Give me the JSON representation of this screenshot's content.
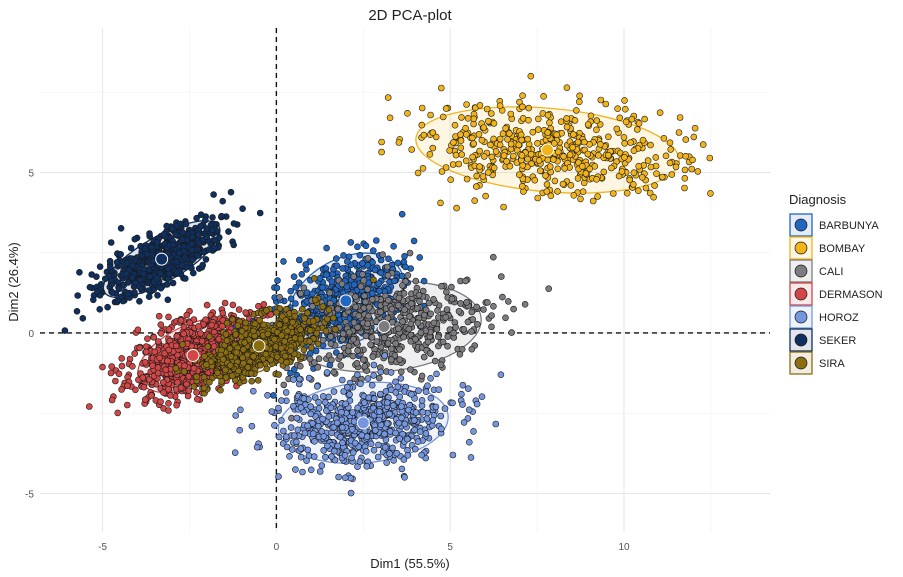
{
  "chart_data": {
    "type": "scatter",
    "title": "2D PCA-plot",
    "xlabel": "Dim1 (55.5%)",
    "ylabel": "Dim2 (26.4%)",
    "xlim": [
      -6.8,
      14.2
    ],
    "ylim": [
      -6.2,
      9.5
    ],
    "x_ticks": [
      -5,
      0,
      5,
      10
    ],
    "x_tick_labels": [
      "-5",
      "0",
      "5",
      "10"
    ],
    "y_ticks": [
      -5,
      0,
      5
    ],
    "y_tick_labels": [
      "-5",
      "0",
      "5"
    ],
    "grid": true,
    "reference_lines": {
      "x": 0,
      "y": 0,
      "style": "dashed"
    },
    "legend_title": "Diagnosis",
    "legend_position": "right",
    "series": [
      {
        "name": "BARBUNYA",
        "color": "#2166c1",
        "border": "#0d3f85",
        "centroid": [
          2.0,
          1.0
        ],
        "ellipse": {
          "rx": 3.6,
          "ry": 2.6,
          "angle": -30
        }
      },
      {
        "name": "BOMBAY",
        "color": "#f2b41b",
        "border": "#c98d00",
        "centroid": [
          7.8,
          5.7
        ],
        "ellipse": {
          "rx": 7.6,
          "ry": 2.6,
          "angle": 5
        }
      },
      {
        "name": "CALI",
        "color": "#7c7c80",
        "border": "#4e4e52",
        "centroid": [
          3.1,
          0.2
        ],
        "ellipse": {
          "rx": 5.6,
          "ry": 2.8,
          "angle": -5
        }
      },
      {
        "name": "DERMASON",
        "color": "#d14646",
        "border": "#9e2a2a",
        "centroid": [
          -2.4,
          -0.7
        ],
        "ellipse": {
          "rx": 3.4,
          "ry": 1.9,
          "angle": -25
        }
      },
      {
        "name": "HOROZ",
        "color": "#7597e0",
        "border": "#4567b3",
        "centroid": [
          2.5,
          -2.8
        ],
        "ellipse": {
          "rx": 4.9,
          "ry": 2.5,
          "angle": -5
        }
      },
      {
        "name": "SEKER",
        "color": "#0f2f5f",
        "border": "#06183a",
        "centroid": [
          -3.3,
          2.3
        ],
        "ellipse": {
          "rx": 3.8,
          "ry": 1.4,
          "angle": -30
        }
      },
      {
        "name": "SIRA",
        "color": "#8c6e12",
        "border": "#5e4a0a",
        "centroid": [
          -0.5,
          -0.4
        ],
        "ellipse": {
          "rx": 3.4,
          "ry": 1.5,
          "angle": -25
        }
      }
    ]
  }
}
